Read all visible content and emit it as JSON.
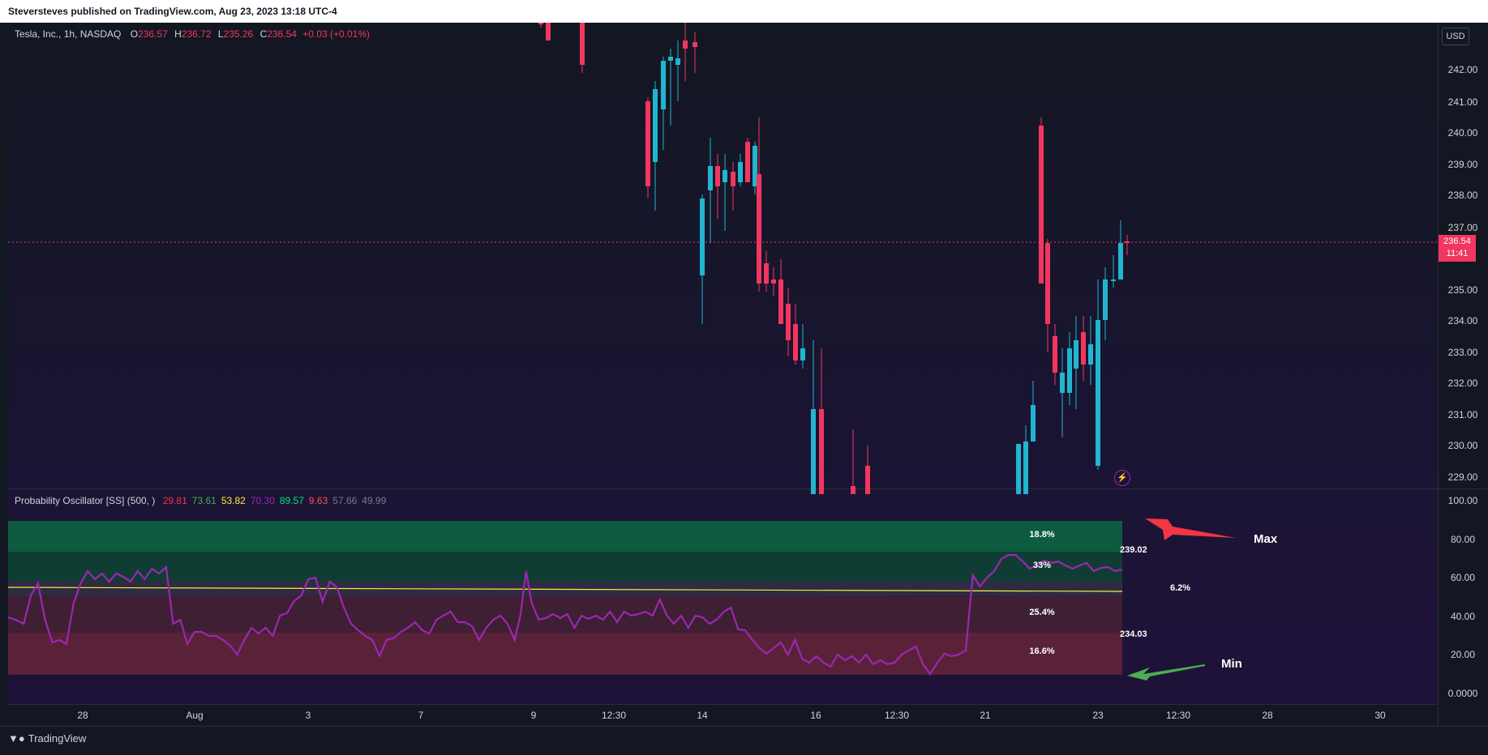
{
  "header": {
    "publish_text": "Steversteves published on TradingView.com, Aug 23, 2023 13:18 UTC-4"
  },
  "symbol_legend": {
    "symbol": "Tesla, Inc., 1h, NASDAQ",
    "o_label": "O",
    "o_value": "236.57",
    "h_label": "H",
    "h_value": "236.72",
    "l_label": "L",
    "l_value": "235.26",
    "c_label": "C",
    "c_value": "236.54",
    "change": "+0.03 (+0.01%)"
  },
  "indicator_legend": {
    "name": "Probability Oscillator [SS] (500, )",
    "values": [
      {
        "text": "29.81",
        "color": "#f23645"
      },
      {
        "text": "73.61",
        "color": "#4caf50"
      },
      {
        "text": "53.82",
        "color": "#ffeb3b"
      },
      {
        "text": "70.30",
        "color": "#9c27b0"
      },
      {
        "text": "89.57",
        "color": "#00e676"
      },
      {
        "text": "9.63",
        "color": "#ff5252"
      },
      {
        "text": "57.66",
        "color": "#787b86"
      },
      {
        "text": "49.99",
        "color": "#787b86"
      }
    ]
  },
  "currency": "USD",
  "last_price": {
    "price": "236.54",
    "countdown": "11:41"
  },
  "price_axis": [
    "242.00",
    "241.00",
    "240.00",
    "239.00",
    "238.00",
    "237.00",
    "235.00",
    "234.00",
    "233.00",
    "232.00",
    "231.00",
    "230.00",
    "229.00"
  ],
  "osc_axis": [
    "100.00",
    "80.00",
    "60.00",
    "40.00",
    "20.00",
    "0.0000"
  ],
  "time_axis": [
    "28",
    "Aug",
    "3",
    "7",
    "9",
    "12:30",
    "14",
    "16",
    "12:30",
    "21",
    "23",
    "12:30",
    "28",
    "30"
  ],
  "zones": {
    "top": "18.8%",
    "upper": "33%",
    "lower": "25.4%",
    "bottom": "16.6%"
  },
  "side_labels": {
    "max_price": "239.02",
    "mid_pct": "6.2%",
    "min_price": "234.03"
  },
  "annotations": {
    "max": "Max",
    "min": "Min"
  },
  "footer": {
    "brand": "TradingView"
  },
  "colors": {
    "up": "#22b5cf",
    "down": "#f23660",
    "oscillator": "#9c27b0",
    "mean": "#ffeb3b",
    "max_arrow": "#f23645",
    "min_arrow": "#4caf50"
  }
}
